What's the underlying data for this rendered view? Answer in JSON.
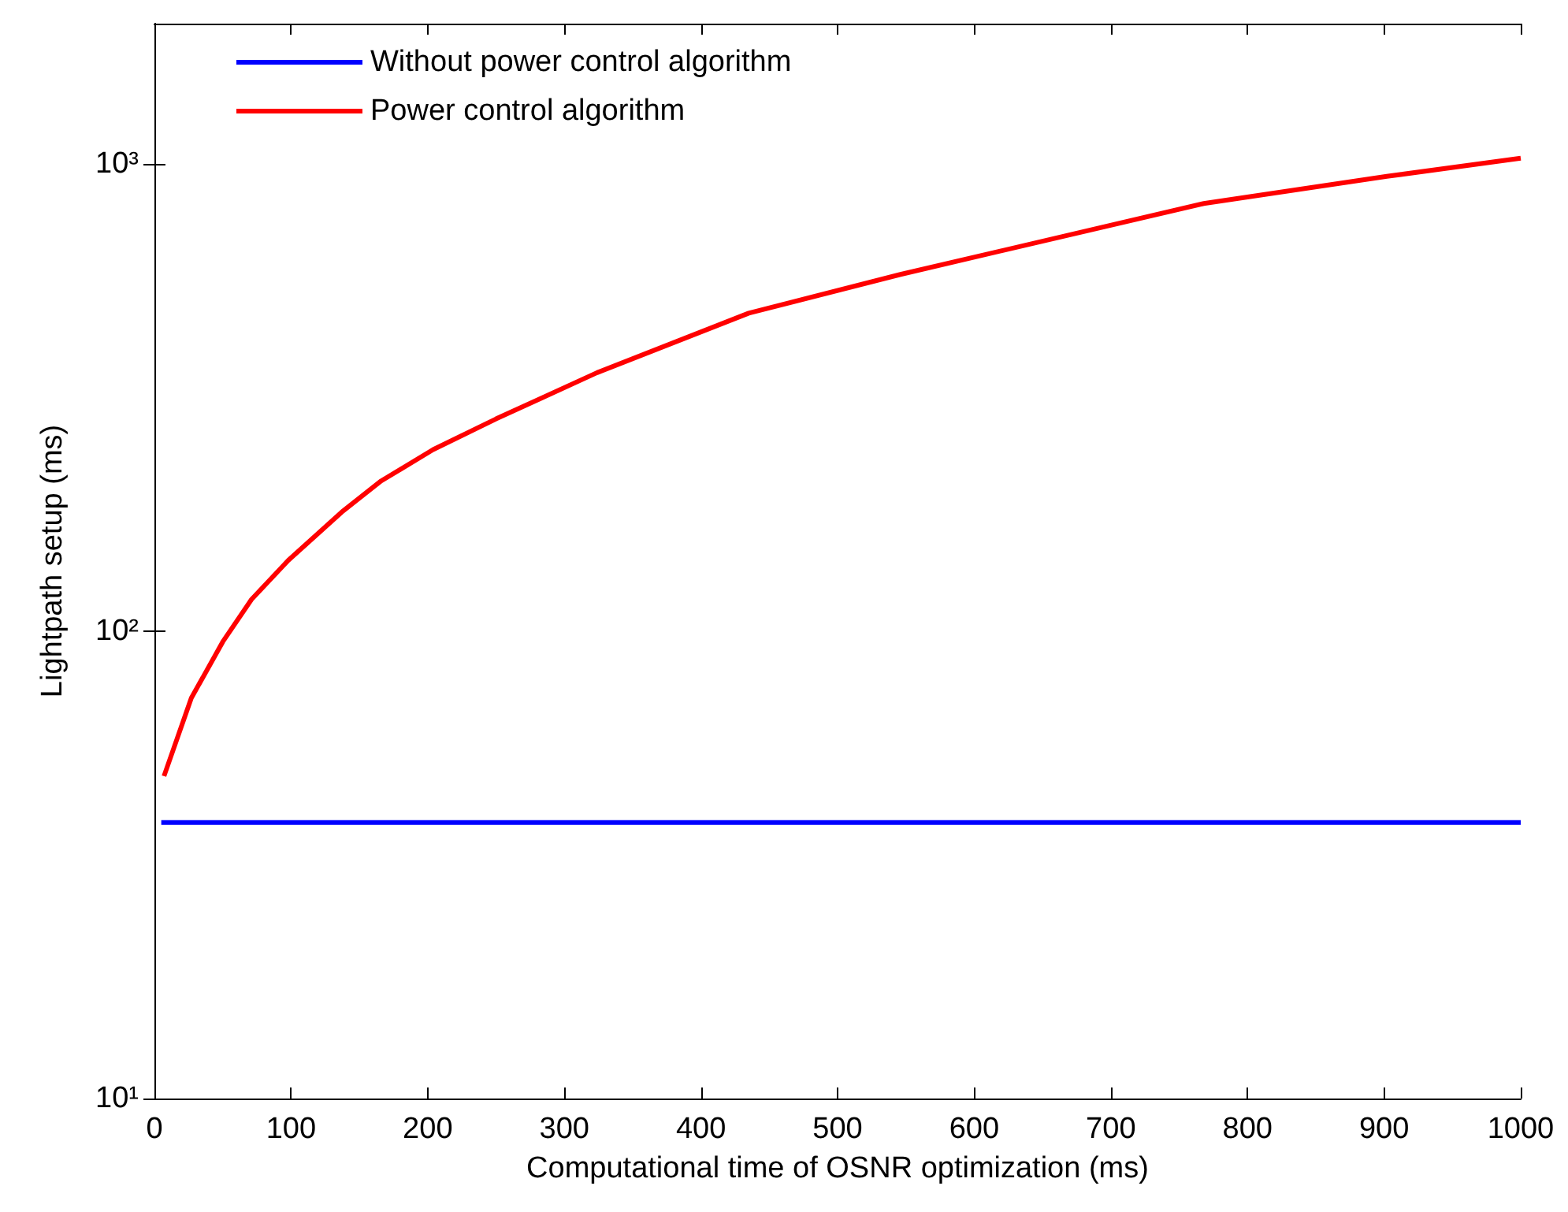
{
  "chart_data": {
    "type": "line",
    "xlabel": "Computational time of OSNR optimization (ms)",
    "ylabel": "Lightpath setup (ms)",
    "xlim": [
      0,
      1000
    ],
    "xticks": [
      0,
      100,
      200,
      300,
      400,
      500,
      600,
      700,
      800,
      900,
      1000
    ],
    "ylim": [
      10,
      2000
    ],
    "yticks": [
      {
        "value": 10,
        "label": "10¹"
      },
      {
        "value": 100,
        "label": "10²"
      },
      {
        "value": 1000,
        "label": "10³"
      }
    ],
    "log": "y",
    "grid": false,
    "legend": "top left",
    "marker": "none",
    "line_style": "solid",
    "series": [
      {
        "name": "Without power control algorithm",
        "color": "#0000ff",
        "x": [
          5,
          1000
        ],
        "values": [
          39,
          39
        ]
      },
      {
        "name": "Power control algorithm",
        "color": "#ff0000",
        "x": [
          7,
          27,
          50,
          71,
          98,
          137,
          166,
          204,
          250,
          324,
          435,
          546,
          768,
          902,
          1000
        ],
        "values": [
          49,
          72,
          95,
          117,
          142,
          180,
          210,
          245,
          285,
          358,
          480,
          581,
          824,
          942,
          1030
        ]
      }
    ]
  }
}
